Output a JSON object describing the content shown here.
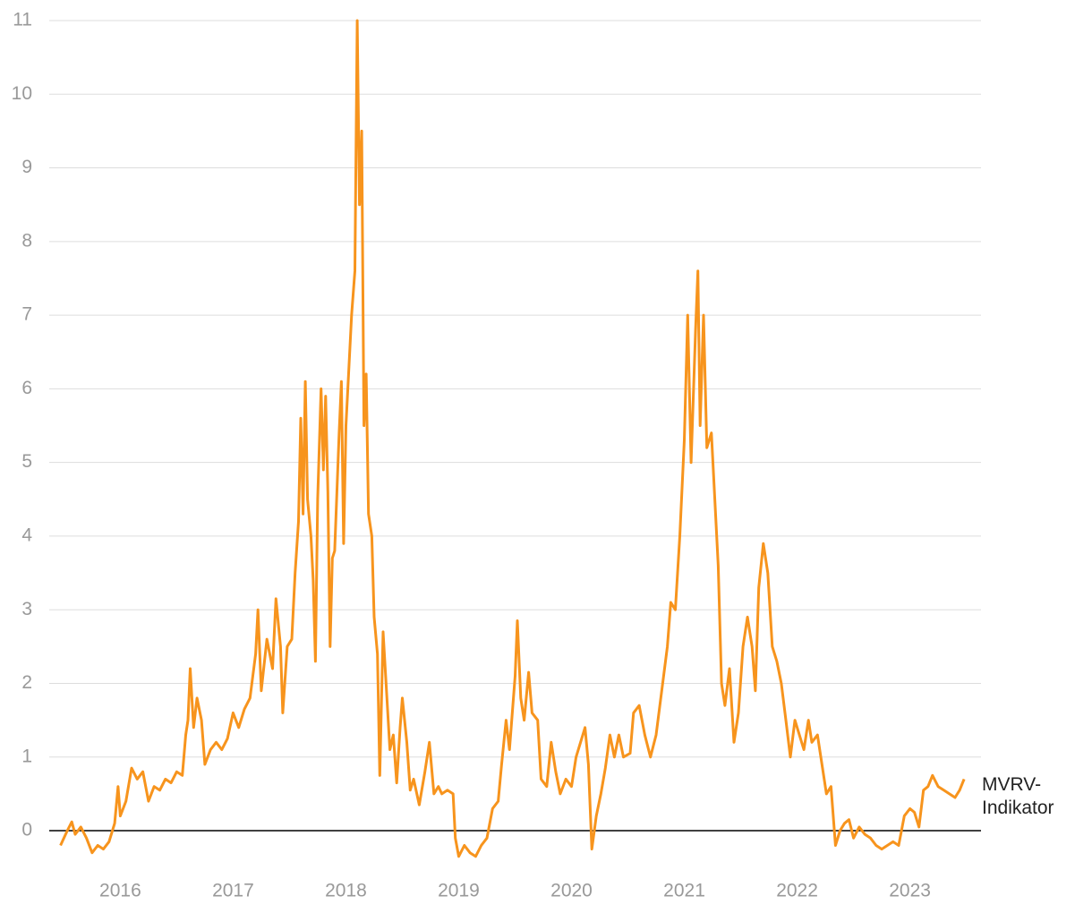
{
  "chart_data": {
    "type": "line",
    "x": [
      2015.47,
      2015.53,
      2015.57,
      2015.6,
      2015.65,
      2015.7,
      2015.75,
      2015.8,
      2015.85,
      2015.9,
      2015.95,
      2015.98,
      2016.0,
      2016.05,
      2016.1,
      2016.15,
      2016.2,
      2016.25,
      2016.3,
      2016.35,
      2016.4,
      2016.45,
      2016.5,
      2016.55,
      2016.58,
      2016.6,
      2016.62,
      2016.65,
      2016.68,
      2016.72,
      2016.75,
      2016.8,
      2016.85,
      2016.9,
      2016.95,
      2017.0,
      2017.05,
      2017.1,
      2017.15,
      2017.2,
      2017.22,
      2017.25,
      2017.3,
      2017.35,
      2017.38,
      2017.42,
      2017.44,
      2017.48,
      2017.52,
      2017.55,
      2017.58,
      2017.6,
      2017.62,
      2017.64,
      2017.66,
      2017.69,
      2017.71,
      2017.73,
      2017.75,
      2017.78,
      2017.8,
      2017.82,
      2017.84,
      2017.86,
      2017.88,
      2017.9,
      2017.92,
      2017.94,
      2017.96,
      2017.98,
      2018.0,
      2018.05,
      2018.08,
      2018.1,
      2018.12,
      2018.14,
      2018.16,
      2018.18,
      2018.2,
      2018.23,
      2018.25,
      2018.28,
      2018.3,
      2018.33,
      2018.36,
      2018.39,
      2018.42,
      2018.45,
      2018.48,
      2018.5,
      2018.54,
      2018.57,
      2018.6,
      2018.65,
      2018.7,
      2018.74,
      2018.78,
      2018.82,
      2018.85,
      2018.9,
      2018.95,
      2018.97,
      2019.0,
      2019.05,
      2019.1,
      2019.15,
      2019.2,
      2019.25,
      2019.3,
      2019.35,
      2019.38,
      2019.42,
      2019.45,
      2019.5,
      2019.52,
      2019.55,
      2019.58,
      2019.62,
      2019.65,
      2019.7,
      2019.73,
      2019.78,
      2019.82,
      2019.86,
      2019.9,
      2019.95,
      2020.0,
      2020.04,
      2020.08,
      2020.12,
      2020.15,
      2020.18,
      2020.22,
      2020.26,
      2020.3,
      2020.34,
      2020.38,
      2020.42,
      2020.46,
      2020.52,
      2020.55,
      2020.6,
      2020.65,
      2020.7,
      2020.75,
      2020.8,
      2020.85,
      2020.88,
      2020.92,
      2020.96,
      2021.0,
      2021.03,
      2021.06,
      2021.1,
      2021.12,
      2021.14,
      2021.17,
      2021.2,
      2021.24,
      2021.27,
      2021.3,
      2021.33,
      2021.36,
      2021.4,
      2021.44,
      2021.48,
      2021.52,
      2021.56,
      2021.6,
      2021.63,
      2021.66,
      2021.7,
      2021.74,
      2021.78,
      2021.82,
      2021.86,
      2021.9,
      2021.94,
      2021.98,
      2022.02,
      2022.06,
      2022.1,
      2022.13,
      2022.18,
      2022.22,
      2022.26,
      2022.3,
      2022.34,
      2022.38,
      2022.42,
      2022.46,
      2022.5,
      2022.55,
      2022.6,
      2022.65,
      2022.7,
      2022.75,
      2022.8,
      2022.85,
      2022.9,
      2022.95,
      2023.0,
      2023.04,
      2023.08,
      2023.12,
      2023.16,
      2023.2,
      2023.25,
      2023.3,
      2023.35,
      2023.4,
      2023.44,
      2023.48
    ],
    "series": [
      {
        "name": "MVRV-Indikator",
        "color": "#f7941d",
        "values": [
          -0.2,
          0.0,
          0.12,
          -0.05,
          0.05,
          -0.1,
          -0.3,
          -0.2,
          -0.25,
          -0.15,
          0.1,
          0.6,
          0.2,
          0.4,
          0.85,
          0.7,
          0.8,
          0.4,
          0.6,
          0.55,
          0.7,
          0.65,
          0.8,
          0.75,
          1.3,
          1.5,
          2.2,
          1.4,
          1.8,
          1.5,
          0.9,
          1.1,
          1.2,
          1.1,
          1.25,
          1.6,
          1.4,
          1.65,
          1.8,
          2.4,
          3.0,
          1.9,
          2.6,
          2.2,
          3.15,
          2.5,
          1.6,
          2.5,
          2.6,
          3.5,
          4.2,
          5.6,
          4.3,
          6.1,
          4.5,
          4.0,
          3.4,
          2.3,
          4.5,
          6.0,
          4.9,
          5.9,
          4.6,
          2.5,
          3.7,
          3.8,
          4.6,
          5.4,
          6.1,
          3.9,
          5.5,
          7.0,
          7.6,
          11.0,
          8.5,
          9.5,
          5.5,
          6.2,
          4.3,
          4.0,
          2.9,
          2.4,
          0.75,
          2.7,
          1.9,
          1.1,
          1.3,
          0.65,
          1.4,
          1.8,
          1.2,
          0.55,
          0.7,
          0.35,
          0.8,
          1.2,
          0.5,
          0.6,
          0.5,
          0.55,
          0.5,
          -0.1,
          -0.35,
          -0.2,
          -0.3,
          -0.35,
          -0.2,
          -0.1,
          0.3,
          0.4,
          0.9,
          1.5,
          1.1,
          2.1,
          2.85,
          1.8,
          1.5,
          2.15,
          1.6,
          1.5,
          0.7,
          0.6,
          1.2,
          0.8,
          0.5,
          0.7,
          0.6,
          1.0,
          1.2,
          1.4,
          0.9,
          -0.25,
          0.2,
          0.5,
          0.85,
          1.3,
          1.0,
          1.3,
          1.0,
          1.05,
          1.6,
          1.7,
          1.3,
          1.0,
          1.3,
          1.9,
          2.5,
          3.1,
          3.0,
          4.0,
          5.3,
          7.0,
          5.0,
          6.8,
          7.6,
          5.5,
          7.0,
          5.2,
          5.4,
          4.5,
          3.6,
          2.0,
          1.7,
          2.2,
          1.2,
          1.6,
          2.5,
          2.9,
          2.5,
          1.9,
          3.3,
          3.9,
          3.5,
          2.5,
          2.3,
          2.0,
          1.5,
          1.0,
          1.5,
          1.3,
          1.1,
          1.5,
          1.2,
          1.3,
          0.9,
          0.5,
          0.6,
          -0.2,
          0.0,
          0.1,
          0.15,
          -0.1,
          0.05,
          -0.05,
          -0.1,
          -0.2,
          -0.25,
          -0.2,
          -0.15,
          -0.2,
          0.2,
          0.3,
          0.25,
          0.05,
          0.55,
          0.6,
          0.75,
          0.6,
          0.55,
          0.5,
          0.45,
          0.55,
          0.7
        ]
      }
    ],
    "xlim": [
      2015.37,
      2023.63
    ],
    "xticks": [
      2016,
      2017,
      2018,
      2019,
      2020,
      2021,
      2022,
      2023
    ],
    "ylim": [
      -0.6,
      11
    ],
    "yticks": [
      0,
      1,
      2,
      3,
      4,
      5,
      6,
      7,
      8,
      9,
      10,
      11
    ],
    "grid": true
  }
}
